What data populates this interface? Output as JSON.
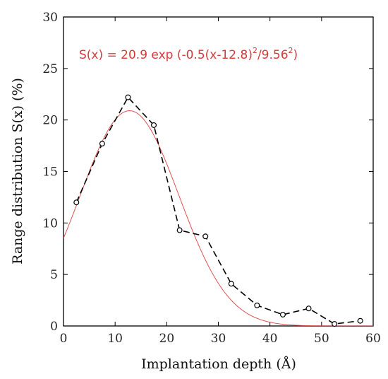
{
  "chart_data": {
    "type": "scatter",
    "xlabel": "Implantation depth (Å)",
    "ylabel": "Range distribution S(x) (%)",
    "xlim": [
      0,
      60
    ],
    "ylim": [
      0,
      30
    ],
    "xticks": [
      0,
      10,
      20,
      30,
      40,
      50,
      60
    ],
    "yticks": [
      0,
      5,
      10,
      15,
      20,
      25,
      30
    ],
    "grid": false,
    "annotation": {
      "prefix": "S(x) = 20.9 exp (-0.5(x-12.8)",
      "sup1": "2",
      "middle": "/9.56",
      "sup2": "2",
      "suffix": ")",
      "color": "#d63a3a"
    },
    "series": [
      {
        "style": "dashed-line-open-circles",
        "color": "#000000",
        "x": [
          2.5,
          7.5,
          12.5,
          17.5,
          22.5,
          27.5,
          32.5,
          37.5,
          42.5,
          47.5,
          52.5,
          57.5
        ],
        "y": [
          12.0,
          17.7,
          22.2,
          19.5,
          9.3,
          8.7,
          4.1,
          2.0,
          1.1,
          1.7,
          0.2,
          0.5
        ]
      },
      {
        "style": "solid-line",
        "color": "#e05050",
        "function": "gaussian",
        "amplitude": 20.9,
        "center": 12.8,
        "width": 9.56,
        "x_range": [
          0,
          60
        ]
      }
    ]
  }
}
